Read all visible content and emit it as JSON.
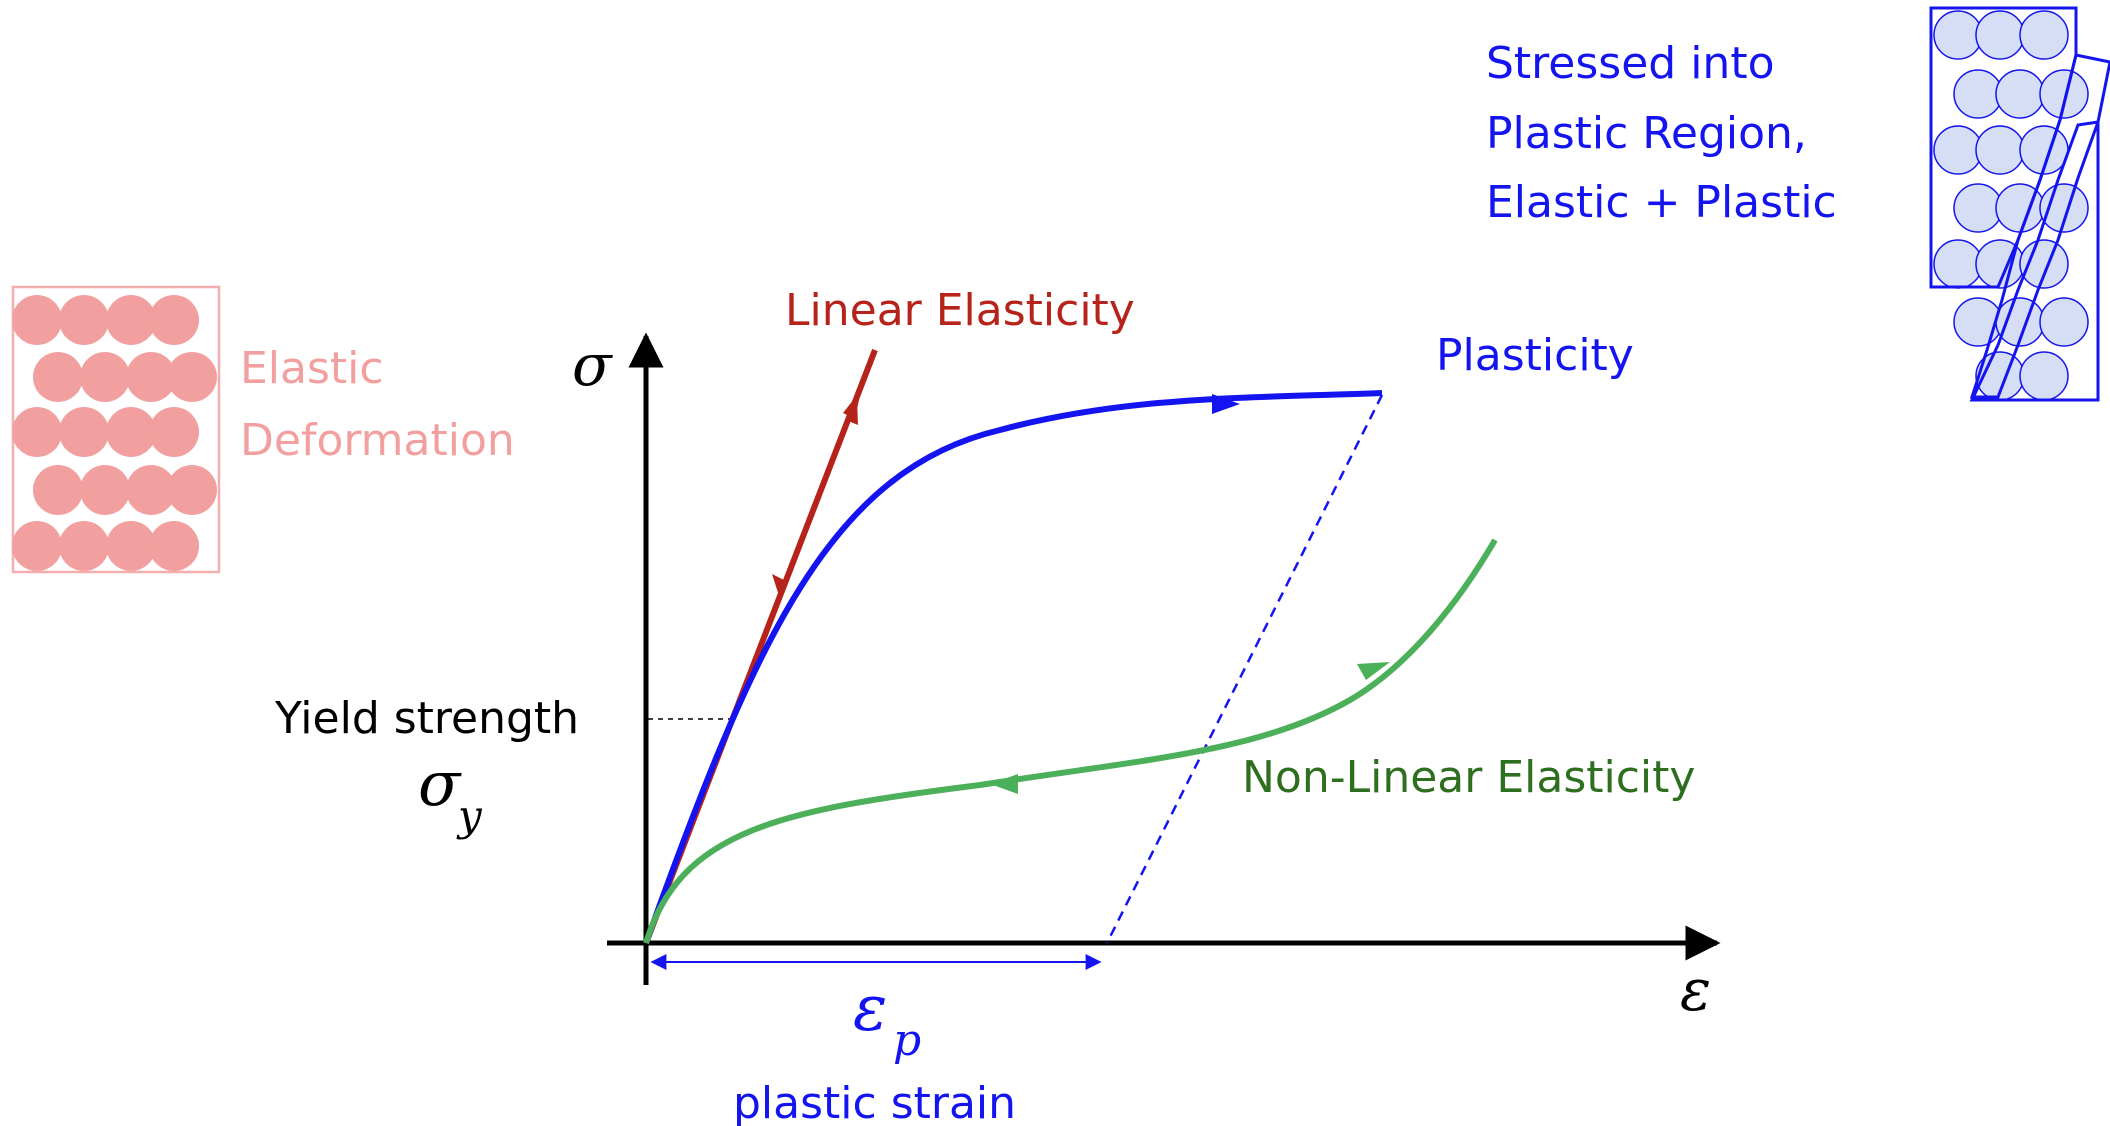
{
  "labels": {
    "sigma": "σ",
    "epsilon": "ε",
    "linear_elasticity": "Linear Elasticity",
    "plasticity": "Plasticity",
    "nonlinear_elasticity": "Non-Linear Elasticity",
    "yield_strength": "Yield strength",
    "sigma_y_base": "σ",
    "sigma_y_sub": "y",
    "eps_p_base": "ε",
    "eps_p_sub": "p",
    "plastic_strain": "plastic strain",
    "elastic_line1": "Elastic",
    "elastic_line2": "Deformation",
    "stressed_line1": "Stressed into",
    "stressed_line2": "Plastic Region,",
    "stressed_line3": "Elastic + Plastic"
  },
  "colors": {
    "axis": "#000000",
    "linear": "#b5231b",
    "plastic": "#1414f0",
    "nonlinear_curve": "#4caf5a",
    "nonlinear_text": "#2e6e1f",
    "elastic_fill": "#f2a09f",
    "elastic_border": "#f4aeb0",
    "elastic_text": "#f2a09f",
    "plastic_atoms": "#d5def5"
  },
  "icons": {
    "elastic_lattice": "elastic-atom-lattice-icon",
    "plastic_lattice": "sheared-atom-lattice-icon"
  }
}
